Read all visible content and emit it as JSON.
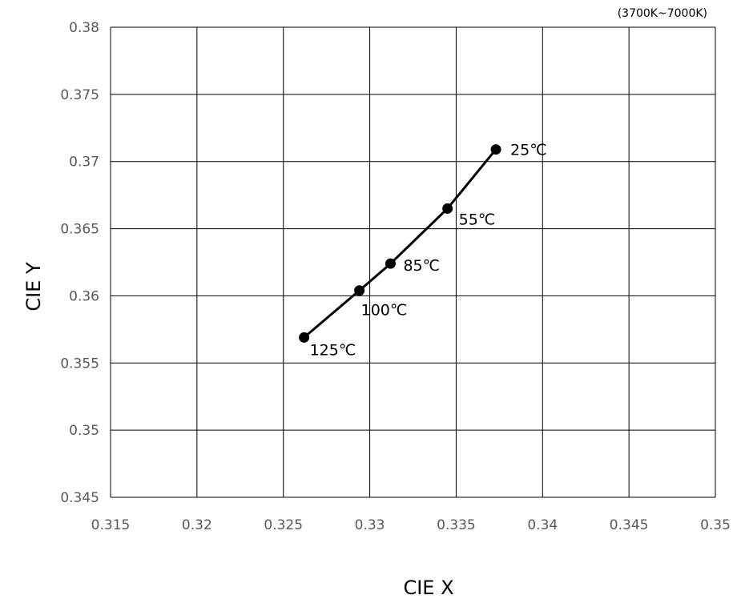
{
  "chart_data": {
    "type": "scatter",
    "title": "",
    "note": "(3700K~7000K)",
    "xlabel": "CIE X",
    "ylabel": "CIE Y",
    "xlim": [
      0.315,
      0.35
    ],
    "ylim": [
      0.345,
      0.38
    ],
    "xticks": [
      "0.315",
      "0.32",
      "0.325",
      "0.33",
      "0.335",
      "0.34",
      "0.345",
      "0.35"
    ],
    "yticks": [
      "0.345",
      "0.35",
      "0.355",
      "0.36",
      "0.365",
      "0.37",
      "0.375",
      "0.38"
    ],
    "grid": true,
    "legend": "none",
    "line_color": "#000000",
    "series": [
      {
        "points": [
          {
            "x": 0.3373,
            "y": 0.3709,
            "label": "25℃"
          },
          {
            "x": 0.3345,
            "y": 0.3665,
            "label": "55℃"
          },
          {
            "x": 0.3312,
            "y": 0.3624,
            "label": "85℃"
          },
          {
            "x": 0.3294,
            "y": 0.3604,
            "label": "100℃"
          },
          {
            "x": 0.3262,
            "y": 0.3569,
            "label": "125℃"
          }
        ]
      }
    ]
  }
}
